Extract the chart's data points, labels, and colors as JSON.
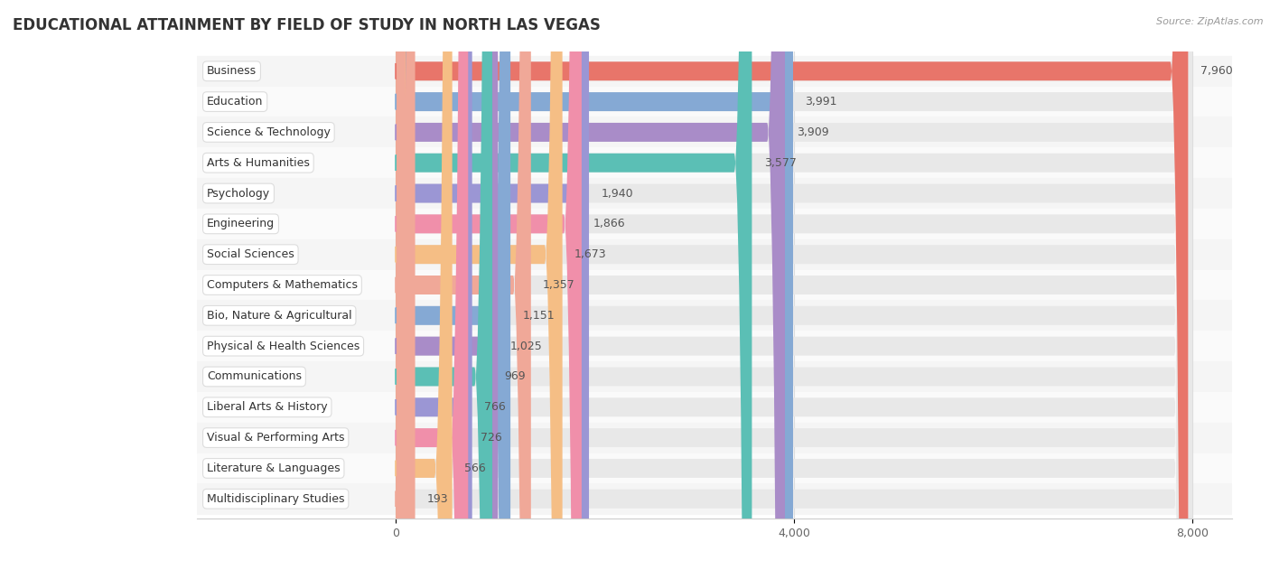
{
  "title": "EDUCATIONAL ATTAINMENT BY FIELD OF STUDY IN NORTH LAS VEGAS",
  "source": "Source: ZipAtlas.com",
  "categories": [
    "Business",
    "Education",
    "Science & Technology",
    "Arts & Humanities",
    "Psychology",
    "Engineering",
    "Social Sciences",
    "Computers & Mathematics",
    "Bio, Nature & Agricultural",
    "Physical & Health Sciences",
    "Communications",
    "Liberal Arts & History",
    "Visual & Performing Arts",
    "Literature & Languages",
    "Multidisciplinary Studies"
  ],
  "values": [
    7960,
    3991,
    3909,
    3577,
    1940,
    1866,
    1673,
    1357,
    1151,
    1025,
    969,
    766,
    726,
    566,
    193
  ],
  "bar_colors": [
    "#E8756A",
    "#85A9D4",
    "#A98CC8",
    "#5BBFB5",
    "#9B96D4",
    "#F08FAA",
    "#F5BE85",
    "#F0A898",
    "#85A9D4",
    "#A98CC8",
    "#5BBFB5",
    "#9B96D4",
    "#F08FAA",
    "#F5BE85",
    "#F0A898"
  ],
  "xlim_left": -2000,
  "xlim_right": 8400,
  "data_xstart": 0,
  "data_xend": 8000,
  "xticks": [
    0,
    4000,
    8000
  ],
  "bar_bg_color": "#e8e8e8",
  "row_bg_even": "#f5f5f5",
  "row_bg_odd": "#fafafa",
  "background_color": "#ffffff",
  "title_fontsize": 12,
  "label_fontsize": 9,
  "value_fontsize": 9,
  "bar_height": 0.62
}
